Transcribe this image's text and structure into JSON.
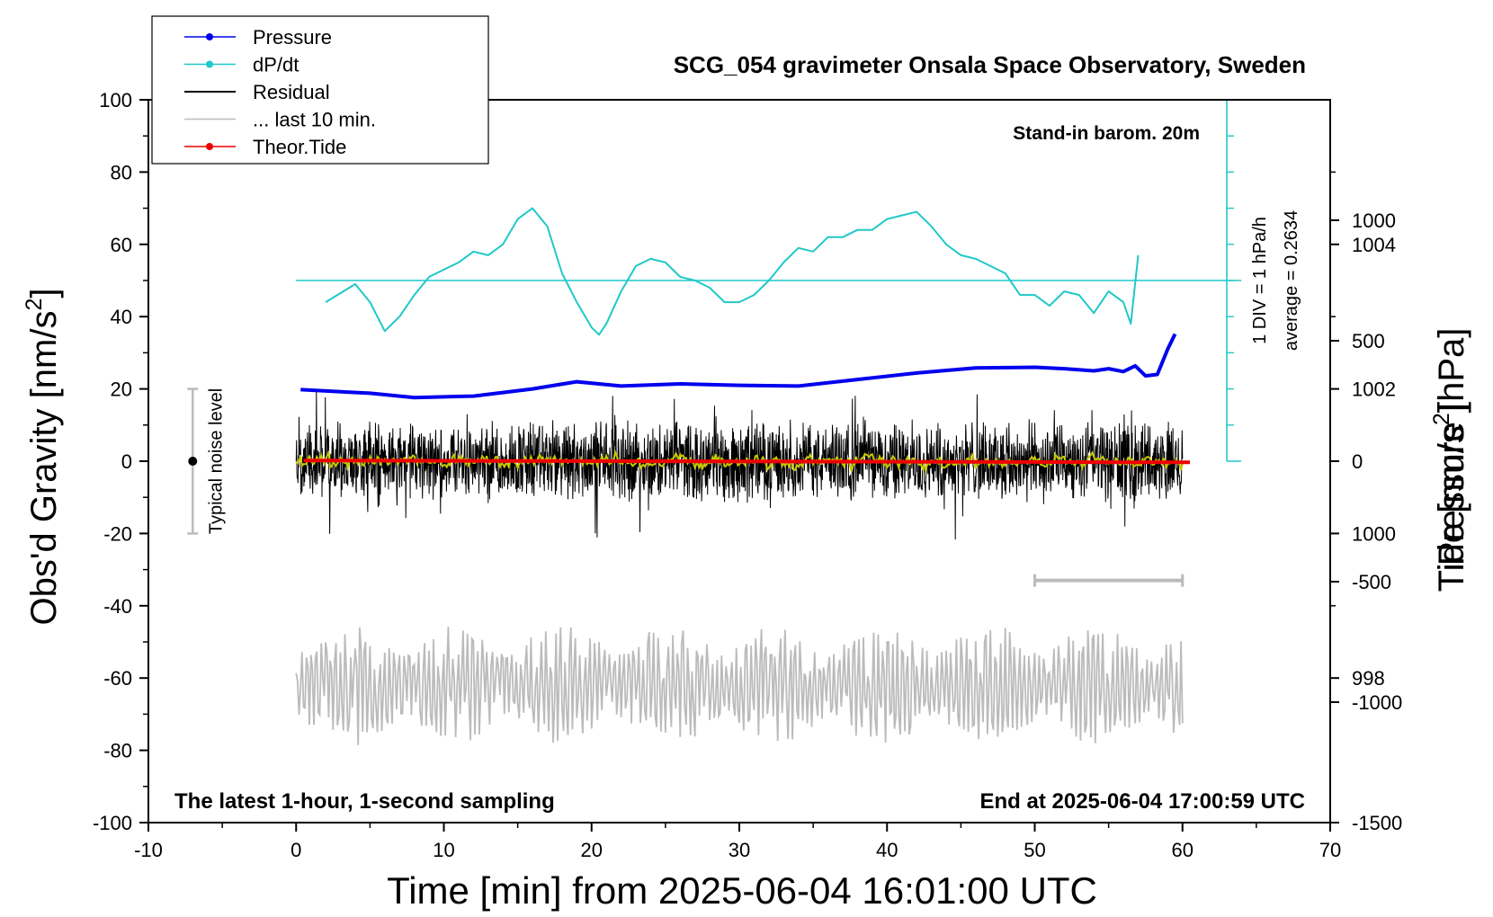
{
  "chart_data": {
    "type": "line",
    "title": "SCG_054 gravimeter Onsala Space Observatory, Sweden",
    "xlabel": "Time [min] from 2025-06-04 16:01:00 UTC",
    "ylabel_left": "Obs'd Gravity [nm/s",
    "ylabel_left_sup": "2",
    "ylabel_left_tail": "]",
    "ylabel_right_pressure": "Pressure [hPa]",
    "ylabel_right_tide": "Tide [nm/s",
    "ylabel_right_tide_sup": "2",
    "ylabel_right_tide_tail": "]",
    "xlim": [
      -10,
      70
    ],
    "ylim": [
      -100,
      100
    ],
    "pressure_lim": [
      996,
      1006
    ],
    "tide_lim": [
      -1500,
      1500
    ],
    "x_ticks": [
      -10,
      0,
      10,
      20,
      30,
      40,
      50,
      60,
      70
    ],
    "y_ticks": [
      -100,
      -80,
      -60,
      -40,
      -20,
      0,
      20,
      40,
      60,
      80,
      100
    ],
    "pressure_ticks": [
      998,
      1000,
      1002,
      1004
    ],
    "tide_ticks": [
      -1500,
      -1000,
      -500,
      0,
      500,
      1000
    ],
    "legend_position": "top-left",
    "legend": [
      {
        "label": "Pressure",
        "color": "#0000ee",
        "marker": true
      },
      {
        "label": "dP/dt",
        "color": "#20c8c8",
        "marker": true
      },
      {
        "label": "Residual",
        "color": "#000000",
        "marker": false
      },
      {
        "label": "... last 10 min.",
        "color": "#bbbbbb",
        "marker": false
      },
      {
        "label": "Theor.Tide",
        "color": "#ee0000",
        "marker": true
      }
    ],
    "annotations": {
      "barometer": "Stand-in barom. 20m",
      "div": "1 DIV = 1 hPa/h",
      "average": "average = 0.2634",
      "noise": "Typical noise level",
      "sampling": "The latest 1-hour, 1-second sampling",
      "end": "End at 2025-06-04 17:00:59 UTC"
    },
    "noise_bar": {
      "x": -7,
      "y_range": [
        -20,
        20
      ]
    },
    "last10_bar": {
      "x_range": [
        50,
        60
      ],
      "y": -33
    },
    "dpdt_scale": {
      "x": 63,
      "y_range": [
        0,
        100
      ],
      "baseline_y": 50,
      "baseline_x_range": [
        0,
        63
      ]
    },
    "series": [
      {
        "name": "Pressure",
        "color": "#0000ee",
        "axis": "pressure",
        "x": [
          0.3,
          5,
          8,
          12,
          16,
          19,
          22,
          26,
          30,
          34,
          38,
          42,
          46,
          50,
          52,
          54,
          55,
          56,
          56.8,
          57.5,
          58.3,
          59,
          59.5
        ],
        "values": [
          1001.99,
          1001.94,
          1001.88,
          1001.9,
          1002.0,
          1002.1,
          1002.04,
          1002.07,
          1002.05,
          1002.04,
          1002.13,
          1002.22,
          1002.29,
          1002.3,
          1002.28,
          1002.25,
          1002.28,
          1002.24,
          1002.32,
          1002.18,
          1002.2,
          1002.55,
          1002.76
        ]
      },
      {
        "name": "dP/dt",
        "color": "#20c8c8",
        "axis": "dpdt_display",
        "x": [
          2,
          4,
          5,
          6,
          7,
          8,
          9,
          10,
          11,
          12,
          13,
          14,
          15,
          16,
          17,
          18,
          19,
          20,
          20.5,
          21,
          22,
          23,
          24,
          25,
          26,
          27,
          28,
          29,
          30,
          31,
          32,
          33,
          34,
          35,
          36,
          37,
          38,
          39,
          40,
          41,
          42,
          43,
          44,
          45,
          46,
          47,
          48,
          49,
          50,
          51,
          52,
          53,
          54,
          55,
          56,
          56.5,
          57
        ],
        "values": [
          44,
          49,
          44,
          36,
          40,
          46,
          51,
          53,
          55,
          58,
          57,
          60,
          67,
          70,
          65,
          52,
          44,
          37,
          35,
          38,
          47,
          54,
          56,
          55,
          51,
          50,
          48,
          44,
          44,
          46,
          50,
          55,
          59,
          58,
          62,
          62,
          64,
          64,
          67,
          68,
          69,
          65,
          60,
          57,
          56,
          54,
          52,
          46,
          46,
          43,
          47,
          46,
          41,
          47,
          44,
          38,
          57
        ]
      },
      {
        "name": "Theor.Tide",
        "color": "#ee0000",
        "axis": "tide",
        "x": [
          0.5,
          60.5
        ],
        "values": [
          3,
          -5
        ]
      }
    ]
  }
}
